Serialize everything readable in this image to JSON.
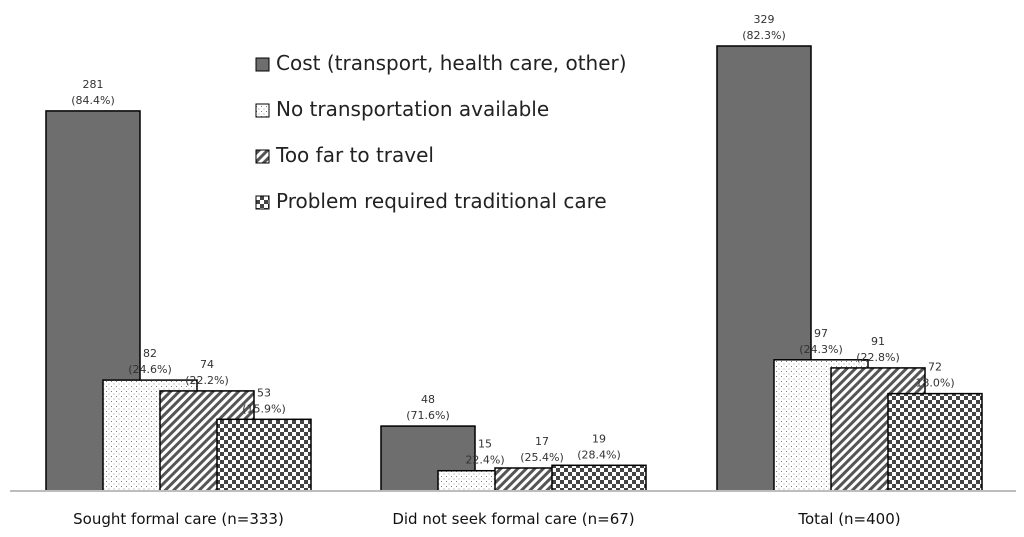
{
  "chart_data": {
    "type": "bar",
    "title": "",
    "xlabel": "",
    "ylabel": "",
    "ylim": [
      0,
      329
    ],
    "grid": false,
    "legend_placement": "top-center",
    "categories": [
      "Sought formal care (n=333)",
      "Did not seek formal care (n=67)",
      "Total (n=400)"
    ],
    "series": [
      {
        "name": "Cost (transport, health care, other)",
        "pattern": "solid-gray",
        "color": "#6e6e6e",
        "values": [
          281,
          48,
          329
        ],
        "percent_labels": [
          "(84.4%)",
          "(71.6%)",
          "(82.3%)"
        ]
      },
      {
        "name": "No transportation available",
        "pattern": "dots",
        "color": "#ffffff",
        "values": [
          82,
          15,
          97
        ],
        "percent_labels": [
          "(24.6%)",
          "22.4%)",
          "(24.3%)"
        ]
      },
      {
        "name": "Too far to travel",
        "pattern": "diagonal-hatch",
        "color": "#555555",
        "values": [
          74,
          17,
          91
        ],
        "percent_labels": [
          "(22.2%)",
          "(25.4%)",
          "(22.8%)"
        ]
      },
      {
        "name": "Problem required traditional care",
        "pattern": "checkerboard",
        "color": "#444444",
        "values": [
          53,
          19,
          72
        ],
        "percent_labels": [
          "(15.9%)",
          "(28.4%)",
          "18.0%)"
        ]
      }
    ]
  }
}
